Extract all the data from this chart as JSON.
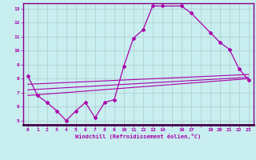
{
  "xlabel": "Windchill (Refroidissement éolien,°C)",
  "background_color": "#c8eef0",
  "line_color": "#aa00aa",
  "grid_color": "#b0c8c8",
  "xlim": [
    -0.5,
    23.5
  ],
  "ylim": [
    4.7,
    13.4
  ],
  "xticks": [
    0,
    1,
    2,
    3,
    4,
    5,
    6,
    7,
    8,
    9,
    10,
    11,
    12,
    13,
    14,
    16,
    17,
    19,
    20,
    21,
    22,
    23
  ],
  "yticks": [
    5,
    6,
    7,
    8,
    9,
    10,
    11,
    12,
    13
  ],
  "line1_x": [
    0,
    1,
    2,
    3,
    4,
    5,
    6,
    7,
    8,
    9,
    10,
    11,
    12,
    13,
    14,
    16,
    17,
    19,
    20,
    21,
    22,
    23
  ],
  "line1_y": [
    8.2,
    6.8,
    6.3,
    5.7,
    5.0,
    5.7,
    6.3,
    5.2,
    6.3,
    6.5,
    8.9,
    10.9,
    11.5,
    13.2,
    13.2,
    13.2,
    12.7,
    11.3,
    10.6,
    10.1,
    8.7,
    7.9
  ],
  "line2_x": [
    0,
    23
  ],
  "line2_y": [
    6.8,
    8.0
  ],
  "line3_x": [
    0,
    23
  ],
  "line3_y": [
    7.2,
    8.1
  ],
  "line4_x": [
    0,
    23
  ],
  "line4_y": [
    7.6,
    8.3
  ]
}
